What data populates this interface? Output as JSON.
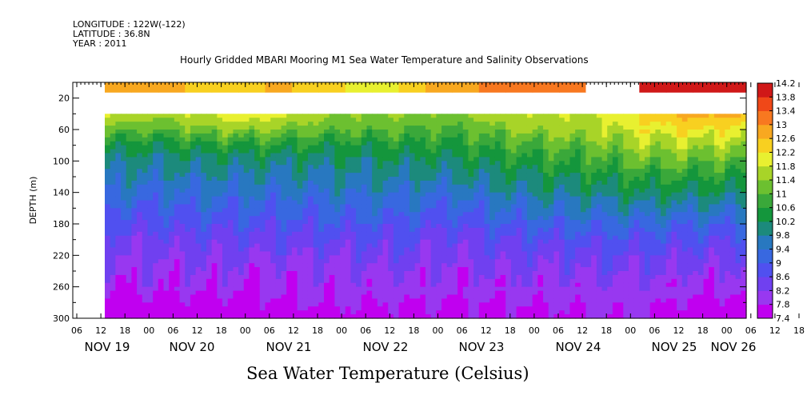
{
  "header": {
    "longitude": "LONGITUDE : 122W(-122)",
    "latitude": "LATITUDE : 36.8N",
    "year": "YEAR : 2011"
  },
  "chart_data": {
    "type": "heatmap",
    "title": "Hourly Gridded MBARI Mooring M1 Sea Water Temperature and Salinity Observations",
    "xlabel": "Sea Water Temperature (Celsius)",
    "ylabel": "DEPTH (m)",
    "hour_ticks": [
      "06",
      "12",
      "18",
      "00",
      "06",
      "12",
      "18",
      "00",
      "06",
      "12",
      "18",
      "00",
      "06",
      "12",
      "18",
      "00",
      "06",
      "12",
      "18",
      "00",
      "06",
      "12",
      "18",
      "00",
      "06",
      "12",
      "18",
      "00",
      "06",
      "12",
      "18",
      "00"
    ],
    "day_labels": [
      "NOV 19",
      "NOV 20",
      "NOV 21",
      "NOV 22",
      "NOV 23",
      "NOV 24",
      "NOV 25",
      "NOV 26"
    ],
    "ylim": [
      300,
      0
    ],
    "y_ticks": [
      20,
      60,
      100,
      140,
      180,
      220,
      260,
      300
    ],
    "colorbar": {
      "levels": [
        7.4,
        7.8,
        8.2,
        8.6,
        9,
        9.4,
        9.8,
        10.2,
        10.6,
        11,
        11.4,
        11.8,
        12.2,
        12.6,
        13,
        13.4,
        13.8,
        14.2
      ],
      "colors": [
        "#c000f0",
        "#9838f0",
        "#7040f0",
        "#5050f0",
        "#3868e0",
        "#2878c0",
        "#1c8a7c",
        "#14963c",
        "#3aa83a",
        "#6cc030",
        "#a8d428",
        "#e8f030",
        "#f8d020",
        "#f8a820",
        "#f87820",
        "#f04818",
        "#d01818",
        "#800010"
      ]
    },
    "data_start_hour": "12 NOV 19",
    "data_gap_depth_m": [
      20,
      40
    ],
    "surface_band_depth_m": [
      0,
      13
    ],
    "surface_temperature": [
      12.6,
      12.8,
      12.6,
      12.4,
      12.3,
      12.4,
      12.6,
      12.5,
      12.3,
      12.1,
      11.8,
      12.2,
      12.6,
      12.8,
      13.0,
      13.2,
      13.2,
      13.0,
      null,
      null,
      13.8,
      14.0,
      14.0,
      13.8
    ],
    "depths_m": [
      40,
      60,
      80,
      100,
      120,
      140,
      160,
      180,
      200,
      220,
      240,
      260,
      280,
      300
    ],
    "profile_times": [
      "12 NOV 19",
      "00 NOV 20",
      "12 NOV 20",
      "00 NOV 21",
      "12 NOV 21",
      "00 NOV 22",
      "12 NOV 22",
      "00 NOV 23",
      "12 NOV 23",
      "00 NOV 24",
      "12 NOV 24",
      "00 NOV 25",
      "12 NOV 25",
      "00 NOV 26"
    ],
    "temperature_profiles": [
      [
        11.8,
        11.2,
        10.4,
        9.9,
        9.7,
        9.4,
        9.0,
        8.7,
        8.4,
        8.2,
        8.0,
        7.8,
        7.6,
        7.5
      ],
      [
        11.6,
        11.0,
        10.3,
        9.9,
        9.6,
        9.3,
        9.0,
        8.7,
        8.4,
        8.2,
        8.0,
        7.9,
        7.7,
        7.6
      ],
      [
        11.8,
        11.3,
        10.5,
        10.0,
        9.7,
        9.4,
        9.1,
        8.8,
        8.5,
        8.3,
        8.1,
        7.9,
        7.7,
        7.5
      ],
      [
        12.2,
        11.4,
        10.6,
        10.0,
        9.7,
        9.4,
        9.1,
        8.8,
        8.5,
        8.2,
        8.0,
        7.8,
        7.7,
        7.6
      ],
      [
        11.7,
        11.2,
        10.5,
        10.0,
        9.7,
        9.4,
        9.1,
        8.8,
        8.5,
        8.3,
        8.1,
        7.9,
        7.8,
        7.6
      ],
      [
        11.4,
        11.0,
        10.4,
        10.0,
        9.8,
        9.5,
        9.2,
        8.9,
        8.6,
        8.3,
        8.1,
        7.9,
        7.8,
        7.7
      ],
      [
        11.5,
        11.0,
        10.5,
        10.1,
        9.8,
        9.5,
        9.2,
        8.9,
        8.6,
        8.4,
        8.2,
        8.0,
        7.8,
        7.7
      ],
      [
        11.3,
        10.9,
        10.5,
        10.1,
        9.8,
        9.4,
        9.0,
        8.7,
        8.4,
        8.2,
        8.0,
        7.9,
        7.8,
        7.7
      ],
      [
        11.7,
        11.3,
        10.8,
        10.4,
        10.0,
        9.7,
        9.3,
        9.0,
        8.6,
        8.4,
        8.2,
        8.0,
        7.8,
        7.7
      ],
      [
        11.8,
        11.5,
        11.0,
        10.6,
        10.2,
        9.9,
        9.5,
        9.1,
        8.7,
        8.4,
        8.2,
        8.0,
        7.8,
        7.7
      ],
      [
        11.8,
        11.6,
        11.2,
        10.8,
        10.4,
        10.0,
        9.6,
        9.2,
        8.8,
        8.5,
        8.3,
        8.1,
        7.9,
        7.8
      ],
      [
        12.4,
        12.0,
        11.6,
        11.2,
        10.6,
        10.2,
        9.7,
        9.2,
        8.8,
        8.5,
        8.3,
        8.1,
        7.9,
        7.8
      ],
      [
        12.8,
        12.2,
        11.6,
        11.1,
        10.6,
        10.1,
        9.6,
        9.1,
        8.7,
        8.4,
        8.1,
        7.9,
        7.7,
        7.5
      ],
      [
        12.6,
        12.0,
        11.5,
        11.0,
        10.5,
        10.1,
        9.6,
        9.1,
        8.7,
        8.4,
        8.1,
        7.9,
        7.7,
        7.6
      ]
    ]
  }
}
